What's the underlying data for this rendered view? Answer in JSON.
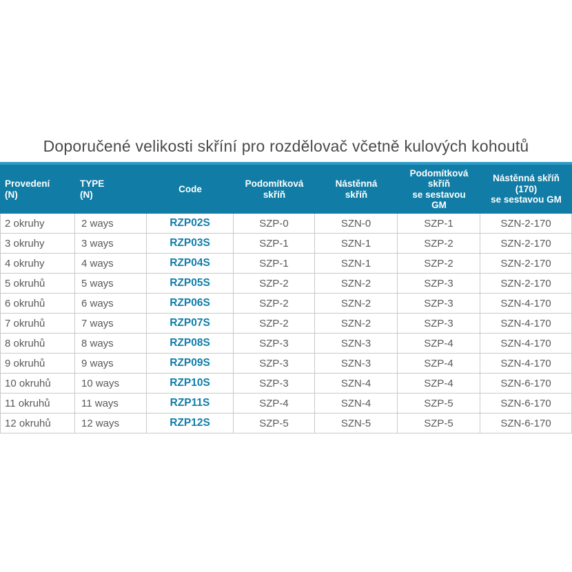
{
  "title": "Doporučené velikosti skříní pro rozdělovač včetně kulových kohoutů",
  "colors": {
    "header_bg": "#117CA5",
    "header_top_strip": "#2D9CC7",
    "header_text": "#FFFFFF",
    "code_text": "#0F7DA8",
    "body_text": "#58595B",
    "title_text": "#4A4A4C",
    "grid_border": "#C8C9CB",
    "background": "#FFFFFF"
  },
  "table": {
    "columns": [
      {
        "id": "provedeni",
        "lines": [
          "Provedení",
          "(N)"
        ]
      },
      {
        "id": "type",
        "lines": [
          "TYPE",
          "(N)"
        ]
      },
      {
        "id": "code",
        "lines": [
          "Code"
        ]
      },
      {
        "id": "podomitkova-skrin",
        "lines": [
          "Podomítková",
          "skříň"
        ]
      },
      {
        "id": "nastenna-skrin",
        "lines": [
          "Nástěnná",
          "skříň"
        ]
      },
      {
        "id": "podomitkova-skrin-gm",
        "lines": [
          "Podomítková",
          "skříň",
          "se sestavou",
          "GM"
        ]
      },
      {
        "id": "nastenna-skrin-170-gm",
        "lines": [
          "Nástěnná skříň",
          "(170)",
          "se sestavou GM"
        ]
      }
    ],
    "rows": [
      [
        "2 okruhy",
        "2 ways",
        "RZP02S",
        "SZP-0",
        "SZN-0",
        "SZP-1",
        "SZN-2-170"
      ],
      [
        "3 okruhy",
        "3 ways",
        "RZP03S",
        "SZP-1",
        "SZN-1",
        "SZP-2",
        "SZN-2-170"
      ],
      [
        "4 okruhy",
        "4 ways",
        "RZP04S",
        "SZP-1",
        "SZN-1",
        "SZP-2",
        "SZN-2-170"
      ],
      [
        "5 okruhů",
        "5 ways",
        "RZP05S",
        "SZP-2",
        "SZN-2",
        "SZP-3",
        "SZN-2-170"
      ],
      [
        "6 okruhů",
        "6 ways",
        "RZP06S",
        "SZP-2",
        "SZN-2",
        "SZP-3",
        "SZN-4-170"
      ],
      [
        "7 okruhů",
        "7 ways",
        "RZP07S",
        "SZP-2",
        "SZN-2",
        "SZP-3",
        "SZN-4-170"
      ],
      [
        "8 okruhů",
        "8 ways",
        "RZP08S",
        "SZP-3",
        "SZN-3",
        "SZP-4",
        "SZN-4-170"
      ],
      [
        "9 okruhů",
        "9 ways",
        "RZP09S",
        "SZP-3",
        "SZN-3",
        "SZP-4",
        "SZN-4-170"
      ],
      [
        "10 okruhů",
        "10 ways",
        "RZP10S",
        "SZP-3",
        "SZN-4",
        "SZP-4",
        "SZN-6-170"
      ],
      [
        "11 okruhů",
        "11 ways",
        "RZP11S",
        "SZP-4",
        "SZN-4",
        "SZP-5",
        "SZN-6-170"
      ],
      [
        "12 okruhů",
        "12 ways",
        "RZP12S",
        "SZP-5",
        "SZN-5",
        "SZP-5",
        "SZN-6-170"
      ]
    ]
  }
}
